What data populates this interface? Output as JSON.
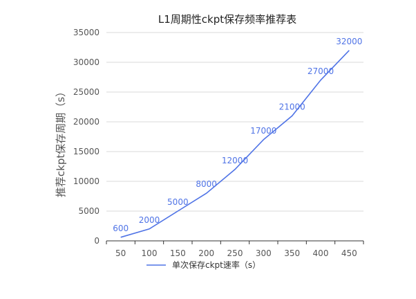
{
  "chart_data": {
    "type": "line",
    "title": "L1周期性ckpt保存频率推荐表",
    "xlabel": "",
    "ylabel": "推荐ckpt保存周期（s）",
    "categories": [
      "50",
      "100",
      "150",
      "200",
      "250",
      "300",
      "350",
      "400",
      "450"
    ],
    "series": [
      {
        "name": "单次保存ckpt速率（s）",
        "values": [
          600,
          2000,
          5000,
          8000,
          12000,
          17000,
          21000,
          27000,
          32000
        ],
        "labels": [
          "600",
          "2000",
          "5000",
          "8000",
          "12000",
          "17000",
          "21000",
          "27000",
          "32000"
        ],
        "color": "#4f73e6"
      }
    ],
    "ylim": [
      0,
      35000
    ],
    "yticks": [
      "0",
      "5000",
      "10000",
      "15000",
      "20000",
      "25000",
      "30000",
      "35000"
    ],
    "grid": "horizontal",
    "legend_position": "bottom",
    "colors": {
      "series": "#4f73e6",
      "grid": "#d9d9d9",
      "axis": "#333333"
    }
  }
}
